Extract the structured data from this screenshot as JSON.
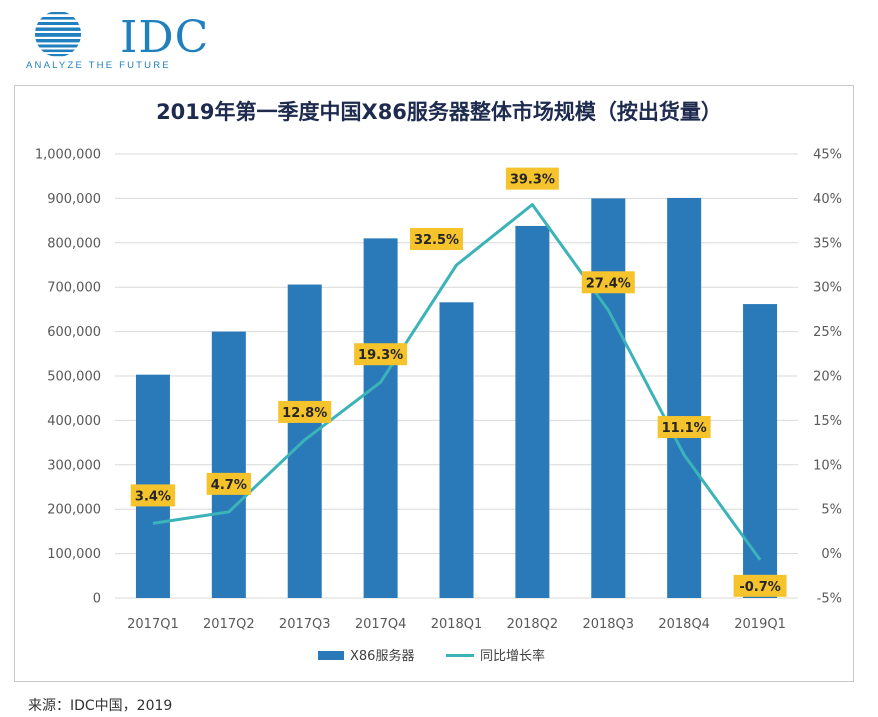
{
  "logo": {
    "brand": "IDC",
    "tagline": "ANALYZE THE FUTURE"
  },
  "source": "来源：IDC中国，2019",
  "colors": {
    "bar": "#2a7ab9",
    "line": "#3bb3b8",
    "label_bg": "#f5c32c",
    "title": "#1e2b4f",
    "grid": "#d9d9d9",
    "logo": "#1f7fbf"
  },
  "chart_data": {
    "type": "bar",
    "title": "2019年第一季度中国X86服务器整体市场规模（按出货量）",
    "categories": [
      "2017Q1",
      "2017Q2",
      "2017Q3",
      "2017Q4",
      "2018Q1",
      "2018Q2",
      "2018Q3",
      "2018Q4",
      "2019Q1"
    ],
    "series": [
      {
        "name": "X86服务器",
        "type": "bar",
        "axis": "left",
        "values": [
          503000,
          600000,
          706000,
          810000,
          666000,
          838000,
          900000,
          901000,
          662000
        ]
      },
      {
        "name": "同比增长率",
        "type": "line",
        "axis": "right",
        "values": [
          3.4,
          4.7,
          12.8,
          19.3,
          32.5,
          39.3,
          27.4,
          11.1,
          -0.7
        ],
        "labels": [
          "3.4%",
          "4.7%",
          "12.8%",
          "19.3%",
          "32.5%",
          "39.3%",
          "27.4%",
          "11.1%",
          "-0.7%"
        ]
      }
    ],
    "y_left": {
      "min": 0,
      "max": 1000000,
      "step": 100000,
      "ticks": [
        "0",
        "100,000",
        "200,000",
        "300,000",
        "400,000",
        "500,000",
        "600,000",
        "700,000",
        "800,000",
        "900,000",
        "1,000,000"
      ]
    },
    "y_right": {
      "min": -5,
      "max": 45,
      "step": 5,
      "ticks": [
        "-5%",
        "0%",
        "5%",
        "10%",
        "15%",
        "20%",
        "25%",
        "30%",
        "35%",
        "40%",
        "45%"
      ]
    },
    "legend_position": "bottom",
    "grid": true
  }
}
